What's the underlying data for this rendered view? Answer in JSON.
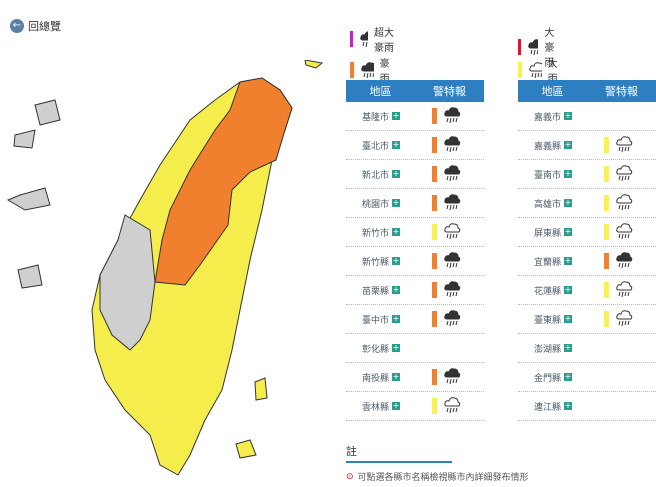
{
  "nav": {
    "back": "回總覽"
  },
  "legend": [
    {
      "label": "超大豪雨",
      "color": "#d619d0",
      "icon": "heavy"
    },
    {
      "label": "大豪雨",
      "color": "#e8112d",
      "icon": "heavy"
    },
    {
      "label": "豪雨",
      "color": "#f07f2e",
      "icon": "heavy"
    },
    {
      "label": "大雨",
      "color": "#f9f24c",
      "icon": "rain"
    }
  ],
  "tables": [
    {
      "header": [
        "地區",
        "警特報"
      ],
      "rows": [
        {
          "area": "基隆市",
          "warning": "豪雨"
        },
        {
          "area": "臺北市",
          "warning": "豪雨"
        },
        {
          "area": "新北市",
          "warning": "豪雨"
        },
        {
          "area": "桃園市",
          "warning": "豪雨"
        },
        {
          "area": "新竹市",
          "warning": "大雨"
        },
        {
          "area": "新竹縣",
          "warning": "豪雨"
        },
        {
          "area": "苗栗縣",
          "warning": "豪雨"
        },
        {
          "area": "臺中市",
          "warning": "豪雨"
        },
        {
          "area": "彰化縣",
          "warning": null
        },
        {
          "area": "南投縣",
          "warning": "豪雨"
        },
        {
          "area": "雲林縣",
          "warning": "大雨"
        }
      ]
    },
    {
      "header": [
        "地區",
        "警特報"
      ],
      "rows": [
        {
          "area": "嘉義市",
          "warning": null
        },
        {
          "area": "嘉義縣",
          "warning": "大雨"
        },
        {
          "area": "臺南市",
          "warning": "大雨"
        },
        {
          "area": "高雄市",
          "warning": "大雨"
        },
        {
          "area": "屏東縣",
          "warning": "大雨"
        },
        {
          "area": "宜蘭縣",
          "warning": "豪雨"
        },
        {
          "area": "花蓮縣",
          "warning": "大雨"
        },
        {
          "area": "臺東縣",
          "warning": "大雨"
        },
        {
          "area": "澎湖縣",
          "warning": null
        },
        {
          "area": "金門縣",
          "warning": null
        },
        {
          "area": "連江縣",
          "warning": null
        }
      ]
    }
  ],
  "note": {
    "title": "註",
    "text": "可點選各縣市名稱檢視縣市內詳細發布情形"
  }
}
